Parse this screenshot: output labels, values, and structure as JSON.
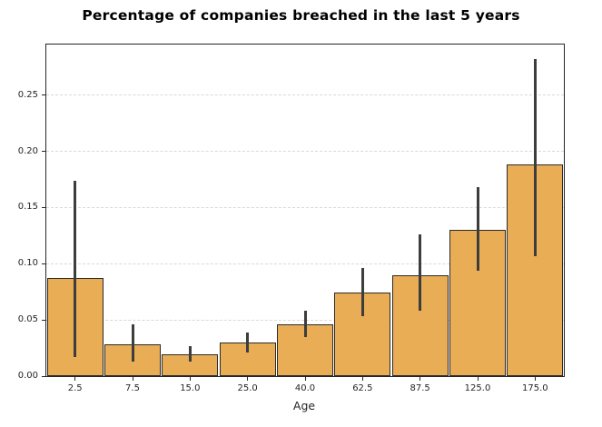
{
  "chart_data": {
    "type": "bar",
    "title": "Percentage of companies breached in the last 5 years",
    "xlabel": "Age",
    "ylabel": "",
    "categories": [
      "2.5",
      "7.5",
      "15.0",
      "25.0",
      "40.0",
      "62.5",
      "87.5",
      "125.0",
      "175.0"
    ],
    "values": [
      0.087,
      0.028,
      0.019,
      0.03,
      0.046,
      0.074,
      0.09,
      0.13,
      0.188
    ],
    "error_low": [
      0.017,
      0.013,
      0.013,
      0.021,
      0.035,
      0.053,
      0.058,
      0.094,
      0.107
    ],
    "error_high": [
      0.174,
      0.046,
      0.027,
      0.039,
      0.058,
      0.096,
      0.126,
      0.168,
      0.282
    ],
    "ytick_labels": [
      "0.00",
      "0.05",
      "0.10",
      "0.15",
      "0.20",
      "0.25"
    ],
    "ylim": [
      0,
      0.295
    ],
    "grid": "horizontal-dashed",
    "legend": "none",
    "colors": {
      "bar_fill": "#e9ad55",
      "bar_edge": "#2b2b2b",
      "error_bar": "#3d3d3d",
      "grid_line": "#d9d9d9",
      "axis": "#262626",
      "background": "#ffffff"
    }
  }
}
